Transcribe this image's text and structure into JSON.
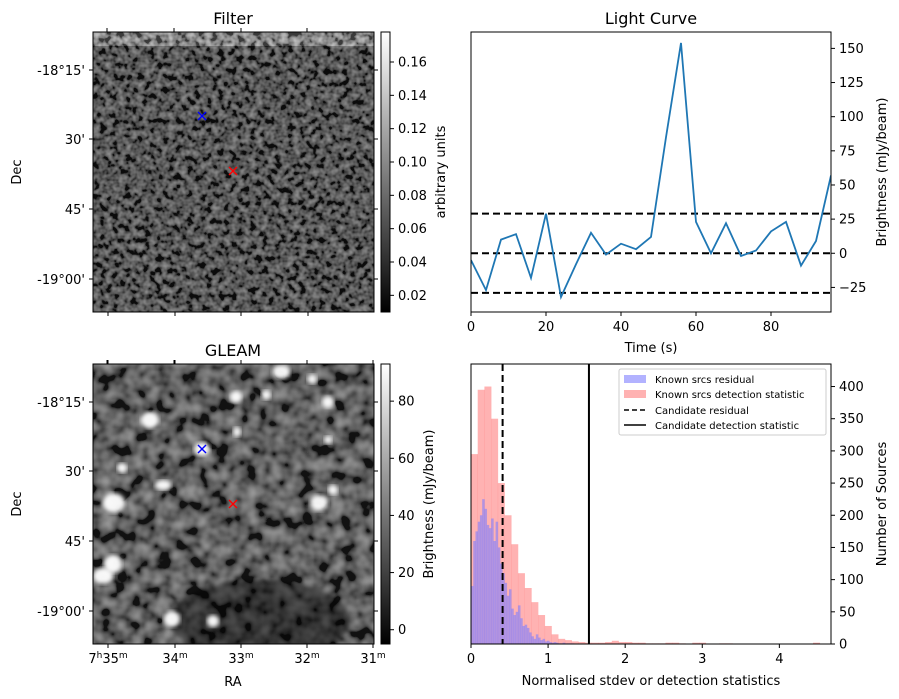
{
  "chart_data": [
    {
      "type": "heatmap",
      "title": "Filter",
      "xlabel": "",
      "ylabel": "Dec",
      "ytick_labels": [
        "-18°15'",
        "30'",
        "45'",
        "-19°00'"
      ],
      "colorbar": {
        "label": "arbitrary units",
        "ticks": [
          "0.02",
          "0.04",
          "0.06",
          "0.08",
          "0.10",
          "0.12",
          "0.14",
          "0.16"
        ],
        "range": [
          0.01,
          0.178
        ]
      },
      "markers": [
        {
          "name": "known source",
          "color": "#0000ff"
        },
        {
          "name": "candidate",
          "color": "#ff0000"
        }
      ]
    },
    {
      "type": "line",
      "title": "Light Curve",
      "xlabel": "Time (s)",
      "ylabel": "Brightness (mJy/beam)",
      "xlim": [
        0,
        96
      ],
      "ylim": [
        -43,
        162
      ],
      "xtick_labels": [
        "0",
        "20",
        "40",
        "60",
        "80"
      ],
      "ytick_labels": [
        "−25",
        "0",
        "25",
        "50",
        "75",
        "100",
        "125",
        "150"
      ],
      "x": [
        0,
        4,
        8,
        12,
        16,
        20,
        24,
        28,
        32,
        36,
        40,
        44,
        48,
        52,
        56,
        60,
        64,
        68,
        72,
        76,
        80,
        84,
        88,
        92,
        96
      ],
      "series": [
        {
          "name": "light curve",
          "color": "#1f77b4",
          "values": [
            -5,
            -27,
            10,
            14,
            -18,
            29,
            -32,
            -8,
            15,
            -1,
            7,
            3,
            12,
            85,
            154,
            23,
            0,
            22,
            -2,
            2,
            16,
            23,
            -9,
            9,
            57
          ]
        }
      ],
      "hlines": [
        {
          "y": 29,
          "style": "dashed"
        },
        {
          "y": 0,
          "style": "dashed"
        },
        {
          "y": -29,
          "style": "dashed"
        }
      ]
    },
    {
      "type": "heatmap",
      "title": "GLEAM",
      "xlabel": "RA",
      "ylabel": "Dec",
      "xtick_labels": [
        {
          "h": "7",
          "hs": "h",
          "m": "35",
          "ms": "m"
        },
        {
          "m": "34",
          "ms": "m"
        },
        {
          "m": "33",
          "ms": "m"
        },
        {
          "m": "32",
          "ms": "m"
        },
        {
          "m": "31",
          "ms": "m"
        }
      ],
      "ytick_labels": [
        "-18°15'",
        "30'",
        "45'",
        "-19°00'"
      ],
      "colorbar": {
        "label": "Brightness (mJy/beam)",
        "ticks": [
          "0",
          "20",
          "40",
          "60",
          "80"
        ],
        "range": [
          -5,
          93
        ]
      },
      "markers": [
        {
          "name": "known source",
          "color": "#0000ff"
        },
        {
          "name": "candidate",
          "color": "#ff0000"
        }
      ]
    },
    {
      "type": "bar",
      "title": "",
      "xlabel": "Normalised stdev or detection statistics",
      "ylabel": "Number of Sources",
      "xlim": [
        0,
        4.67
      ],
      "ylim": [
        0,
        435
      ],
      "xtick_labels": [
        "0",
        "1",
        "2",
        "3",
        "4"
      ],
      "ytick_labels": [
        "0",
        "50",
        "100",
        "150",
        "200",
        "250",
        "300",
        "350",
        "400"
      ],
      "legend_position": "top-right",
      "legend": [
        "Known srcs residual",
        "Known srcs detection statistic",
        "Candidate residual",
        "Candidate detection statistic"
      ],
      "series": [
        {
          "name": "Known srcs detection statistic",
          "color": "#ff7f7f",
          "bin_start": 0,
          "bin_width": 0.087,
          "values": [
            295,
            395,
            400,
            350,
            250,
            200,
            155,
            110,
            87,
            65,
            45,
            28,
            15,
            8,
            6,
            4,
            3,
            2,
            2,
            2,
            3,
            5,
            3,
            3,
            2,
            2,
            1,
            1,
            1,
            2,
            2,
            1,
            0,
            2,
            2,
            0,
            0,
            1,
            1,
            0,
            0,
            0,
            0,
            0,
            0,
            0,
            0,
            0,
            0,
            0,
            0,
            2,
            0,
            0
          ]
        },
        {
          "name": "Known srcs residual",
          "color": "#7f7fff",
          "bin_start": 0,
          "bin_width": 0.029,
          "values": [
            90,
            160,
            175,
            190,
            200,
            225,
            210,
            185,
            180,
            195,
            160,
            190,
            150,
            125,
            110,
            95,
            75,
            85,
            55,
            45,
            50,
            60,
            40,
            28,
            30,
            25,
            18,
            12,
            8,
            15,
            10,
            6,
            8,
            4,
            5,
            3,
            2,
            3,
            2,
            1,
            1,
            2,
            1,
            1,
            1,
            1
          ]
        }
      ],
      "vlines": [
        {
          "name": "Candidate residual",
          "x": 0.41,
          "style": "dashed"
        },
        {
          "name": "Candidate detection statistic",
          "x": 1.53,
          "style": "solid"
        }
      ]
    }
  ]
}
